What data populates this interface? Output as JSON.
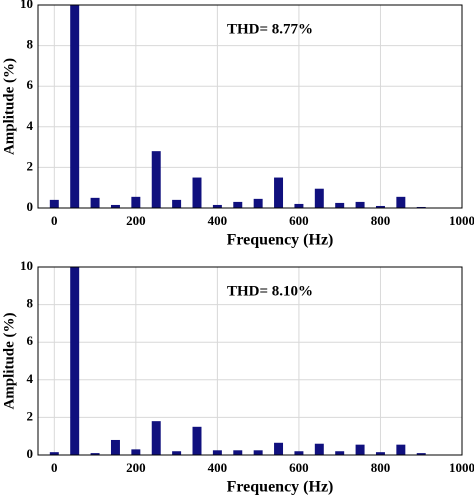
{
  "chart_data": [
    {
      "type": "bar",
      "annotation": "THD= 8.77%",
      "xlabel": "Frequency (Hz)",
      "ylabel": "Amplitude (%)",
      "x": [
        0,
        50,
        100,
        150,
        200,
        250,
        300,
        350,
        400,
        450,
        500,
        550,
        600,
        650,
        700,
        750,
        800,
        850,
        900
      ],
      "values": [
        0.4,
        10,
        0.5,
        0.15,
        0.55,
        2.8,
        0.4,
        1.5,
        0.15,
        0.3,
        0.45,
        1.5,
        0.2,
        0.95,
        0.25,
        0.3,
        0.1,
        0.55,
        0.05
      ],
      "color": "#10107e",
      "xlim": [
        -40,
        1000
      ],
      "ylim": [
        0,
        10
      ],
      "xticks": [
        0,
        200,
        400,
        600,
        800,
        1000
      ],
      "yticks": [
        0,
        2,
        4,
        6,
        8,
        10
      ],
      "grid": true
    },
    {
      "type": "bar",
      "annotation": "THD= 8.10%",
      "xlabel": "Frequency (Hz)",
      "ylabel": "Amplitude (%)",
      "x": [
        0,
        50,
        100,
        150,
        200,
        250,
        300,
        350,
        400,
        450,
        500,
        550,
        600,
        650,
        700,
        750,
        800,
        850,
        900
      ],
      "values": [
        0.15,
        10,
        0.1,
        0.8,
        0.3,
        1.8,
        0.2,
        1.5,
        0.25,
        0.25,
        0.25,
        0.65,
        0.2,
        0.6,
        0.2,
        0.55,
        0.15,
        0.55,
        0.1
      ],
      "color": "#10107e",
      "xlim": [
        -40,
        1000
      ],
      "ylim": [
        0,
        10
      ],
      "xticks": [
        0,
        200,
        400,
        600,
        800,
        1000
      ],
      "yticks": [
        0,
        2,
        4,
        6,
        8,
        10
      ],
      "grid": true
    }
  ]
}
